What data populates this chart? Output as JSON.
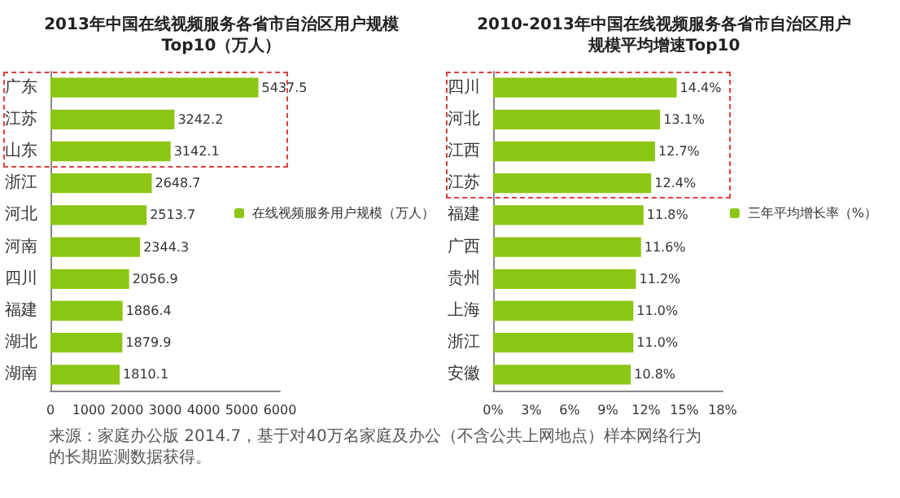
{
  "chart_data": [
    {
      "type": "bar",
      "orientation": "horizontal",
      "title": "2013年中国在线视频服务各省市自治区用户规模Top10（万人）",
      "categories": [
        "广东",
        "江苏",
        "山东",
        "浙江",
        "河北",
        "河南",
        "四川",
        "福建",
        "湖北",
        "湖南"
      ],
      "series": [
        {
          "name": "在线视频服务用户规模（万人）",
          "color": "#8cc614",
          "values": [
            5437.5,
            3242.2,
            3142.1,
            2648.7,
            2513.7,
            2344.3,
            2056.9,
            1886.4,
            1879.9,
            1810.1
          ]
        }
      ],
      "data_labels": true,
      "xlim": [
        0,
        6000
      ],
      "xticks": [
        0,
        1000,
        2000,
        3000,
        4000,
        5000,
        6000
      ],
      "legend": "right",
      "grid": false,
      "annotations": [
        "来源：家庭办公版 2014.7，基于对40万名家庭及办公（不含公共上网地点）样本网络行为的长期监测数据获得。"
      ]
    },
    {
      "type": "bar",
      "orientation": "horizontal",
      "title": "2010-2013年中国在线视频服务各省市自治区用户规模平均增速Top10",
      "categories": [
        "四川",
        "河北",
        "江西",
        "江苏",
        "福建",
        "广西",
        "贵州",
        "上海",
        "浙江",
        "安徽"
      ],
      "series": [
        {
          "name": "三年平均增长率（%）",
          "color": "#8cc614",
          "values": [
            14.4,
            13.1,
            12.7,
            12.4,
            11.8,
            11.6,
            11.2,
            11.0,
            11.0,
            10.8
          ]
        }
      ],
      "value_labels": [
        "14.4%",
        "13.1%",
        "12.7%",
        "12.4%",
        "11.8%",
        "11.6%",
        "11.2%",
        "11.0%",
        "11.0%",
        "10.8%"
      ],
      "xlim": [
        0,
        18
      ],
      "xticks": [
        {
          "value": 0,
          "label": "0%"
        },
        {
          "value": 3,
          "label": "3%"
        },
        {
          "value": 6,
          "label": "6%"
        },
        {
          "value": 9,
          "label": "9%"
        },
        {
          "value": 12,
          "label": "12%"
        },
        {
          "value": 15,
          "label": "15%"
        },
        {
          "value": 18,
          "label": "18%"
        }
      ],
      "legend": "right",
      "grid": false
    }
  ]
}
